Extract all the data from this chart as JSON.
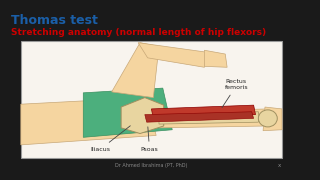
{
  "background_color": "#1a1a1a",
  "title_text": "Thomas test",
  "title_color": "#1a5fa8",
  "subtitle_text": "Stretching anatomy (normal length of hip flexors)",
  "subtitle_color": "#cc0000",
  "footer_text": "Dr Ahmed Ibrahima (PT, PhD)",
  "footer_color": "#888888",
  "image_border_color": "#999999",
  "skin_color": "#f5d5a0",
  "green_color": "#4caf7d",
  "bone_color": "#e8d5a0",
  "muscle_color": "#c0392b",
  "label_rectus": "Rectus\nfemoris",
  "label_iliacus": "Iliacus",
  "label_psoas": "Psoas"
}
